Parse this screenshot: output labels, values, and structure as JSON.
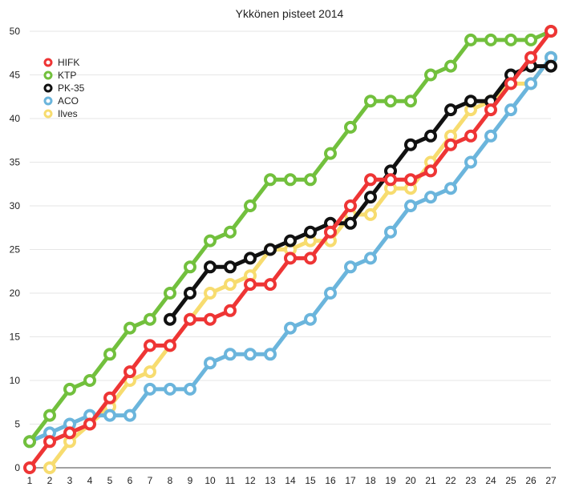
{
  "chart_data": {
    "type": "line",
    "title": "Ykkönen pisteet 2014",
    "xlabel": "",
    "ylabel": "",
    "x": [
      1,
      2,
      3,
      4,
      5,
      6,
      7,
      8,
      9,
      10,
      11,
      12,
      13,
      14,
      15,
      16,
      17,
      18,
      19,
      20,
      21,
      22,
      23,
      24,
      25,
      26,
      27
    ],
    "xlim": [
      1,
      27
    ],
    "ylim": [
      0,
      50
    ],
    "yticks": [
      0,
      5,
      10,
      15,
      20,
      25,
      30,
      35,
      40,
      45,
      50
    ],
    "grid": true,
    "legend_position": "top-left",
    "series": [
      {
        "name": "Ilves",
        "color": "#f7dc6f",
        "values": [
          null,
          0,
          3,
          5,
          7,
          10,
          11,
          14,
          17,
          20,
          21,
          22,
          25,
          25,
          26,
          26,
          29,
          29,
          32,
          32,
          35,
          38,
          41,
          42,
          44,
          44,
          47
        ]
      },
      {
        "name": "ACO",
        "color": "#6bb5dc",
        "values": [
          3,
          4,
          5,
          6,
          6,
          6,
          9,
          9,
          9,
          12,
          13,
          13,
          13,
          16,
          17,
          20,
          23,
          24,
          27,
          30,
          31,
          32,
          35,
          38,
          41,
          44,
          47
        ]
      },
      {
        "name": "KTP",
        "color": "#72c03d",
        "values": [
          3,
          6,
          9,
          10,
          13,
          16,
          17,
          20,
          23,
          26,
          27,
          30,
          33,
          33,
          33,
          36,
          39,
          42,
          42,
          42,
          45,
          46,
          49,
          49,
          49,
          49,
          50
        ]
      },
      {
        "name": "PK-35",
        "color": "#111111",
        "values": [
          null,
          null,
          null,
          null,
          null,
          null,
          null,
          17,
          20,
          23,
          23,
          24,
          25,
          26,
          27,
          28,
          28,
          31,
          34,
          37,
          38,
          41,
          42,
          42,
          45,
          46,
          46
        ]
      },
      {
        "name": "HIFK",
        "color": "#ee3535",
        "values": [
          0,
          3,
          4,
          5,
          8,
          11,
          14,
          14,
          17,
          17,
          18,
          21,
          21,
          24,
          24,
          27,
          30,
          33,
          33,
          33,
          34,
          37,
          38,
          41,
          44,
          47,
          50
        ]
      }
    ],
    "legend_order": [
      "HIFK",
      "KTP",
      "PK-35",
      "ACO",
      "Ilves"
    ]
  }
}
